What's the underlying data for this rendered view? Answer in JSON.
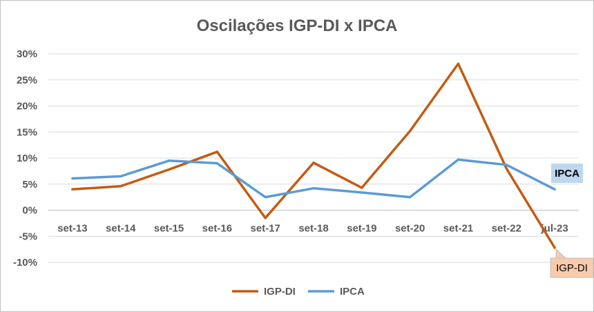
{
  "chart_data": {
    "type": "line",
    "title": "Oscilações IGP-DI x IPCA",
    "categories": [
      "set-13",
      "set-14",
      "set-15",
      "set-16",
      "set-17",
      "set-18",
      "set-19",
      "set-20",
      "set-21",
      "set-22",
      "jul-23"
    ],
    "y_ticks": [
      "30%",
      "25%",
      "20%",
      "15%",
      "10%",
      "5%",
      "0%",
      "-5%",
      "-10%"
    ],
    "ylim": [
      -10,
      30
    ],
    "y_unit": "%",
    "grid": true,
    "legend_position": "bottom",
    "series": [
      {
        "name": "IGP-DI",
        "color": "#c55a11",
        "values": [
          4.0,
          4.6,
          7.8,
          11.2,
          -1.5,
          9.1,
          4.3,
          15.2,
          28.1,
          8.0,
          -7.2
        ]
      },
      {
        "name": "IPCA",
        "color": "#5b9bd5",
        "values": [
          6.1,
          6.5,
          9.5,
          9.0,
          2.5,
          4.2,
          3.4,
          2.5,
          9.7,
          8.7,
          4.0
        ]
      }
    ],
    "callouts": [
      {
        "label": "IPCA",
        "series": "IPCA",
        "fill": "#bdd7ee"
      },
      {
        "label": "IGP-DI",
        "series": "IGP-DI",
        "fill": "#f8cbad"
      }
    ]
  }
}
